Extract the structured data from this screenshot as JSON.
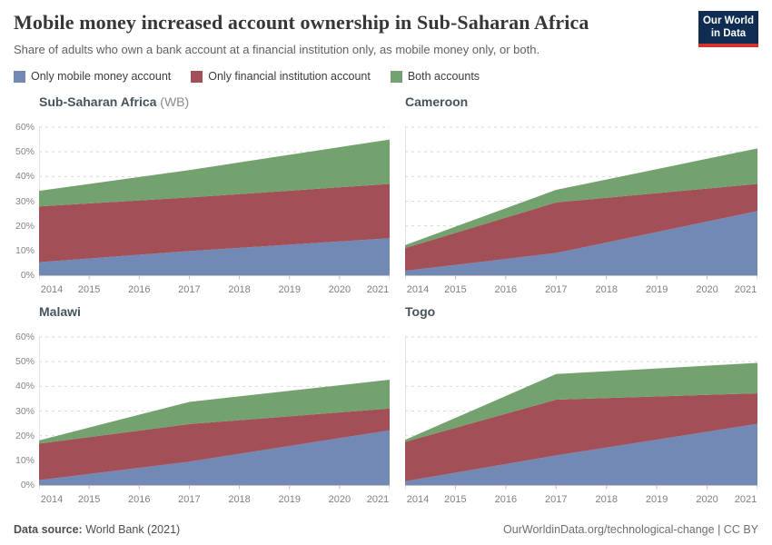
{
  "header": {
    "title": "Mobile money increased account ownership in Sub-Saharan Africa",
    "subtitle": "Share of adults who own a bank account at a financial institution only, as mobile money only, or both.",
    "logo": {
      "line1": "Our World",
      "line2": "in Data",
      "bg_color": "#0f2d52",
      "accent_color": "#d0342c"
    }
  },
  "legend": [
    {
      "label": "Only mobile money account",
      "color": "#7288b5"
    },
    {
      "label": "Only financial institution account",
      "color": "#a24f57"
    },
    {
      "label": "Both accounts",
      "color": "#73a26e"
    }
  ],
  "chart_data": {
    "type": "area",
    "stacked": true,
    "interpolation": "linear",
    "x": [
      2014,
      2017,
      2021
    ],
    "x_tick_years": [
      "2014",
      "2015",
      "2016",
      "2017",
      "2018",
      "2019",
      "2020",
      "2021"
    ],
    "ylim": [
      0,
      60
    ],
    "y_ticks": [
      "0%",
      "10%",
      "20%",
      "30%",
      "40%",
      "50%",
      "60%"
    ],
    "grid": "dashed-horizontal",
    "series_names": [
      "Only mobile money account",
      "Only financial institution account",
      "Both accounts"
    ],
    "units": "% of adults",
    "facets": [
      {
        "title": "Sub-Saharan Africa",
        "title_suffix": " (WB)",
        "series": [
          {
            "name": "Only mobile money account",
            "values": [
              5.3,
              9.8,
              15.0
            ]
          },
          {
            "name": "Only financial institution account",
            "values": [
              22.6,
              21.7,
              22.0
            ]
          },
          {
            "name": "Both accounts",
            "values": [
              6.3,
              11.1,
              18.0
            ]
          }
        ],
        "stack_tops": {
          "mobile_only": [
            5.3,
            9.8,
            15.0
          ],
          "fi_total": [
            27.9,
            31.5,
            37.0
          ],
          "any_account": [
            34.2,
            42.6,
            55.0
          ]
        }
      },
      {
        "title": "Cameroon",
        "series": [
          {
            "name": "Only mobile money account",
            "values": [
              1.8,
              9.0,
              26.0
            ]
          },
          {
            "name": "Only financial institution account",
            "values": [
              9.2,
              20.5,
              11.0
            ]
          },
          {
            "name": "Both accounts",
            "values": [
              1.2,
              5.1,
              14.4
            ]
          }
        ],
        "stack_tops": {
          "mobile_only": [
            1.8,
            9.0,
            26.0
          ],
          "fi_total": [
            11.0,
            29.5,
            37.0
          ],
          "any_account": [
            12.2,
            34.6,
            51.4
          ]
        }
      },
      {
        "title": "Malawi",
        "series": [
          {
            "name": "Only mobile money account",
            "values": [
              2.0,
              9.5,
              22.2
            ]
          },
          {
            "name": "Only financial institution account",
            "values": [
              14.8,
              15.2,
              8.8
            ]
          },
          {
            "name": "Both accounts",
            "values": [
              1.3,
              9.0,
              11.7
            ]
          }
        ],
        "stack_tops": {
          "mobile_only": [
            2.0,
            9.5,
            22.2
          ],
          "fi_total": [
            16.8,
            24.7,
            31.0
          ],
          "any_account": [
            18.1,
            33.7,
            42.7
          ]
        }
      },
      {
        "title": "Togo",
        "series": [
          {
            "name": "Only mobile money account",
            "values": [
              1.5,
              12.0,
              24.8
            ]
          },
          {
            "name": "Only financial institution account",
            "values": [
              16.0,
              22.6,
              12.4
            ]
          },
          {
            "name": "Both accounts",
            "values": [
              0.8,
              10.4,
              12.3
            ]
          }
        ],
        "stack_tops": {
          "mobile_only": [
            1.5,
            12.0,
            24.8
          ],
          "fi_total": [
            17.5,
            34.6,
            37.2
          ],
          "any_account": [
            18.3,
            45.0,
            49.5
          ]
        }
      }
    ],
    "colors": {
      "area_blue": "#7288b5",
      "area_red": "#a24f57",
      "area_green": "#73a26e",
      "gridline": "#d9d9d9",
      "axis": "#c4c4c4",
      "tick": "#bdbdbd"
    }
  },
  "footer": {
    "source_label": "Data source:",
    "source_value": " World Bank (2021)",
    "link": "OurWorldinData.org/technological-change",
    "separator": " | ",
    "license": "CC BY"
  }
}
